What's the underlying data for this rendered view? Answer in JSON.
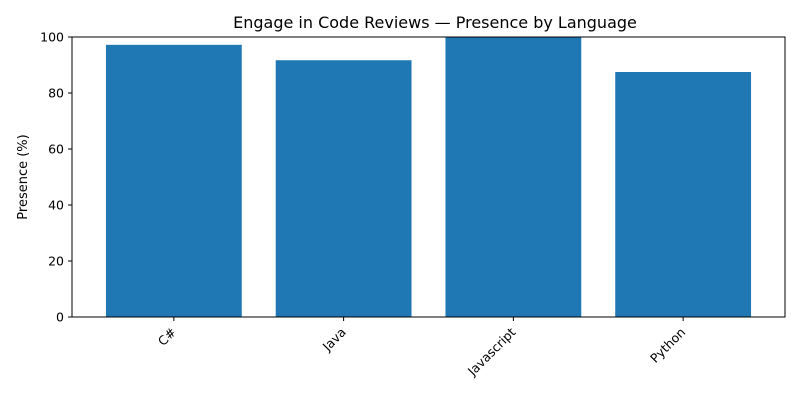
{
  "chart_data": {
    "type": "bar",
    "title": "Engage in Code Reviews — Presence by Language",
    "xlabel": "",
    "ylabel": "Presence (%)",
    "categories": [
      "C#",
      "Java",
      "Javascript",
      "Python"
    ],
    "values": [
      97.2,
      91.7,
      100,
      87.5
    ],
    "ylim": [
      0,
      100
    ],
    "yticks": [
      0,
      20,
      40,
      60,
      80,
      100
    ],
    "grid": false,
    "bar_color": "#1f77b4"
  }
}
